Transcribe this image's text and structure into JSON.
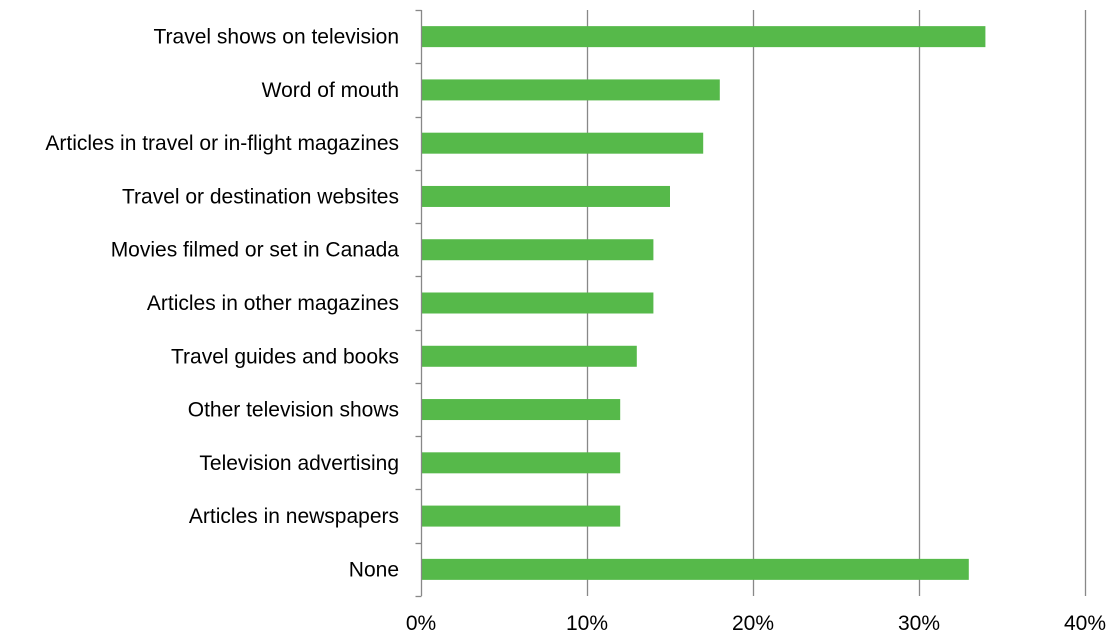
{
  "chart_data": {
    "type": "bar",
    "orientation": "horizontal",
    "title": "",
    "xlabel": "",
    "ylabel": "",
    "categories": [
      "Travel shows on television",
      "Word of mouth",
      "Articles in travel or in-flight magazines",
      "Travel or destination websites",
      "Movies filmed or set in Canada",
      "Articles in other magazines",
      "Travel guides and books",
      "Other television shows",
      "Television advertising",
      "Articles in newspapers",
      "None"
    ],
    "values": [
      34,
      18,
      17,
      15,
      14,
      14,
      13,
      12,
      12,
      12,
      33
    ],
    "value_unit": "%",
    "xlim": [
      0,
      40
    ],
    "x_ticks": [
      0,
      10,
      20,
      30,
      40
    ],
    "x_tick_labels": [
      "0%",
      "10%",
      "20%",
      "30%",
      "40%"
    ],
    "grid": "vertical",
    "legend": "none",
    "colors": {
      "bar": "#56b94a",
      "grid": "#888888",
      "axis": "#888888",
      "text": "#000000"
    }
  }
}
